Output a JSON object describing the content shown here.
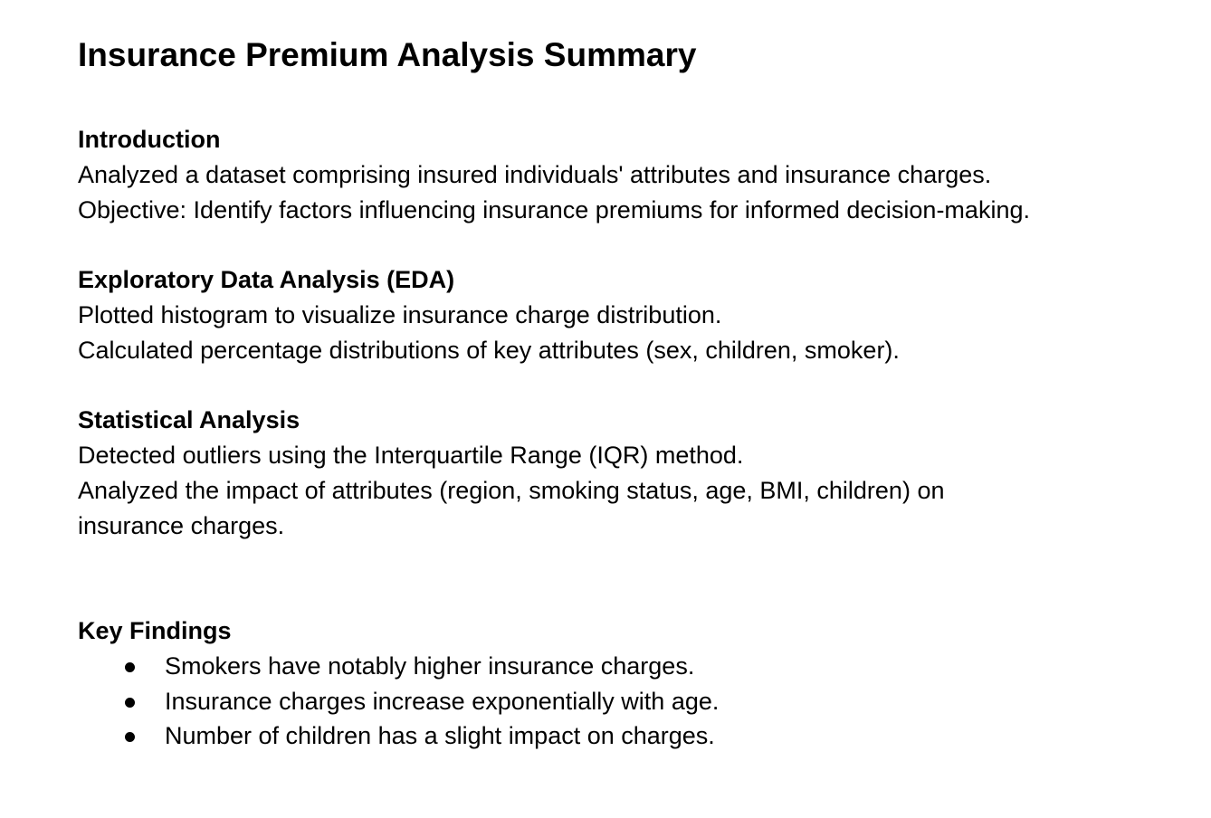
{
  "document": {
    "title": "Insurance Premium Analysis Summary",
    "sections": {
      "introduction": {
        "heading": "Introduction",
        "lines": [
          "Analyzed a dataset comprising insured individuals' attributes and insurance charges.",
          "Objective: Identify factors influencing insurance premiums for informed decision-making."
        ]
      },
      "eda": {
        "heading": "Exploratory Data Analysis (EDA)",
        "lines": [
          "Plotted histogram to visualize insurance charge distribution.",
          "Calculated percentage distributions of key attributes (sex, children, smoker)."
        ]
      },
      "statistical": {
        "heading": "Statistical Analysis",
        "lines": [
          "Detected outliers using the Interquartile Range (IQR) method.",
          "Analyzed the impact of attributes (region, smoking status, age, BMI, children) on",
          "insurance charges."
        ]
      },
      "key_findings": {
        "heading": "Key Findings",
        "bullets": [
          "Smokers have notably higher insurance charges.",
          "Insurance charges increase exponentially with age.",
          "Number of children has a slight impact on charges."
        ]
      }
    }
  }
}
